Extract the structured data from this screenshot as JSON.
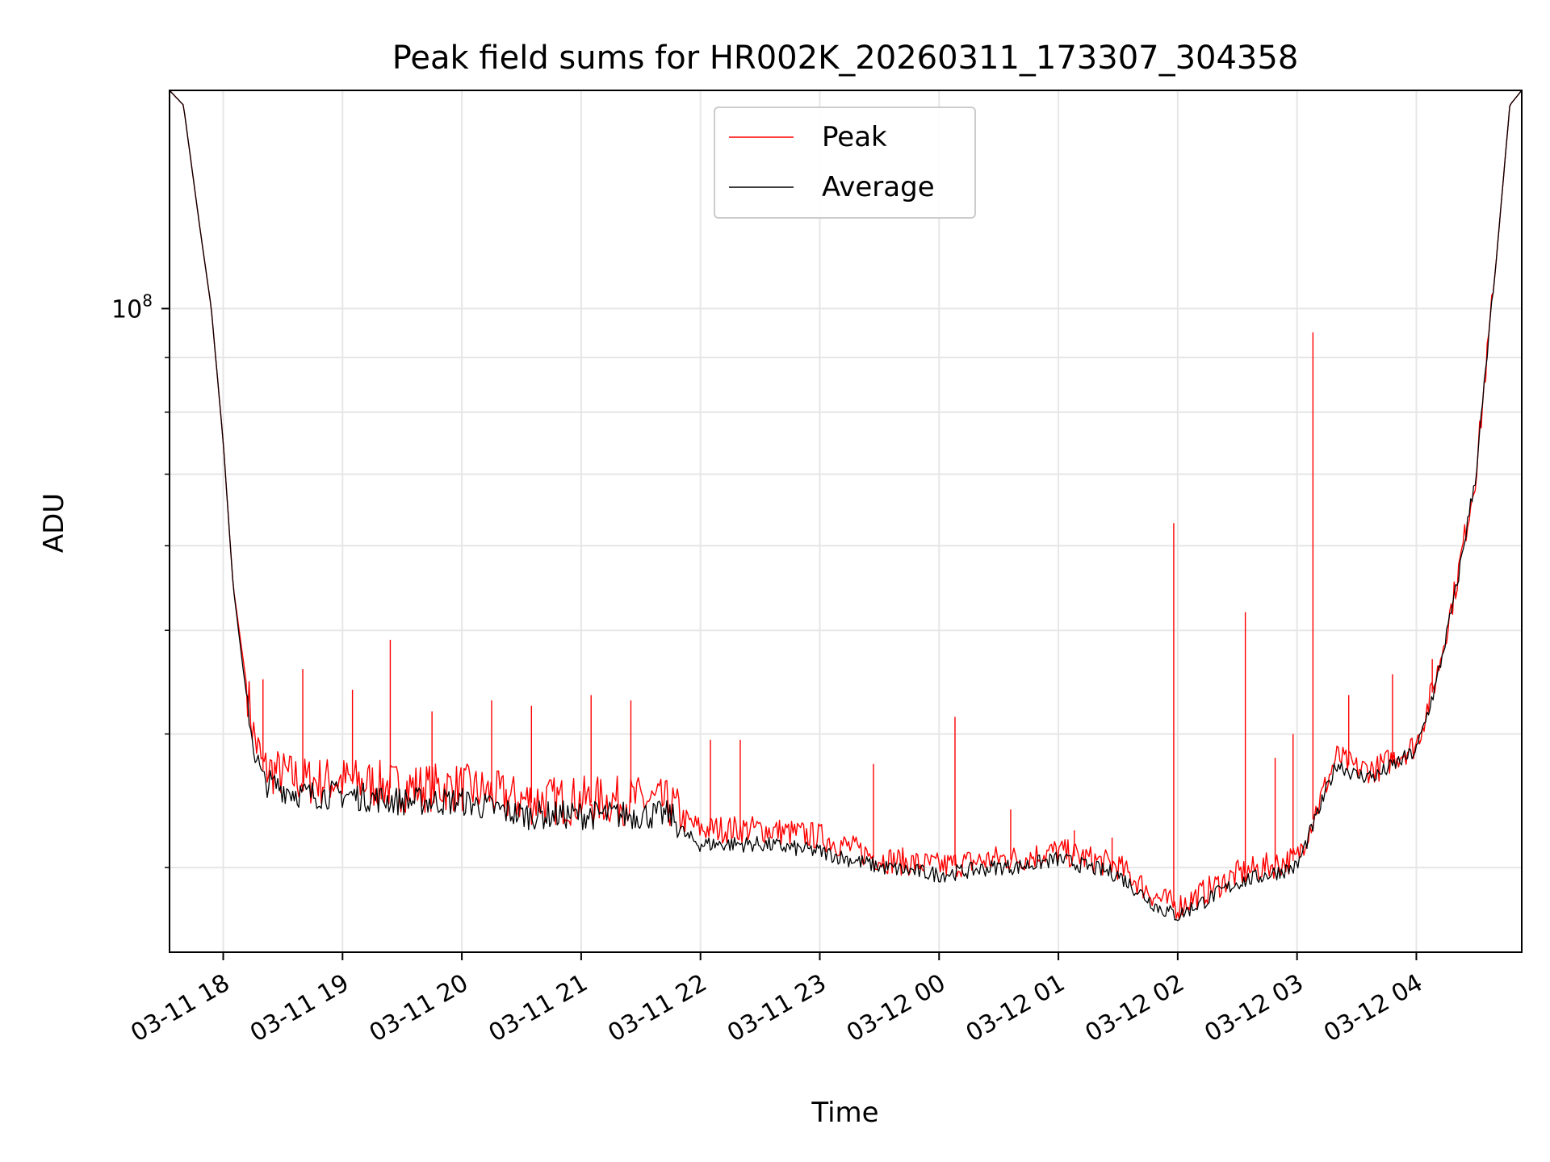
{
  "chart_data": {
    "type": "line",
    "title": "Peak field sums for HR002K_20260311_173307_304358",
    "xlabel": "Time",
    "ylabel": "ADU",
    "yscale": "log",
    "grid": true,
    "legend_position": "top-center",
    "x_ticks": [
      "03-11 18",
      "03-11 19",
      "03-11 20",
      "03-11 21",
      "03-11 22",
      "03-11 23",
      "03-12 00",
      "03-12 01",
      "03-12 02",
      "03-12 03",
      "03-12 04"
    ],
    "x_tick_times": [
      "2026-03-11T18:00",
      "2026-03-11T19:00",
      "2026-03-11T20:00",
      "2026-03-11T21:00",
      "2026-03-11T22:00",
      "2026-03-11T23:00",
      "2026-03-12T00:00",
      "2026-03-12T01:00",
      "2026-03-12T02:00",
      "2026-03-12T03:00",
      "2026-03-12T04:00"
    ],
    "xlim": [
      "2026-03-11T17:33",
      "2026-03-12T04:53"
    ],
    "y_tick_labels": [
      {
        "base": "10",
        "exp": "8",
        "value": 100000000
      }
    ],
    "ylim": [
      25000000,
      160000000
    ],
    "series": [
      {
        "name": "Peak",
        "color": "#ff0000",
        "x": [
          "2026-03-11T17:33",
          "2026-03-11T17:40",
          "2026-03-11T17:48",
          "2026-03-11T17:54",
          "2026-03-11T18:00",
          "2026-03-11T18:05",
          "2026-03-11T18:10",
          "2026-03-11T18:15",
          "2026-03-11T18:20",
          "2026-03-11T18:30",
          "2026-03-11T18:40",
          "2026-03-11T19:00",
          "2026-03-11T19:30",
          "2026-03-11T20:00",
          "2026-03-11T20:30",
          "2026-03-11T21:00",
          "2026-03-11T21:30",
          "2026-03-11T21:45",
          "2026-03-11T21:53",
          "2026-03-11T22:00",
          "2026-03-11T22:30",
          "2026-03-11T23:00",
          "2026-03-11T23:30",
          "2026-03-12T00:00",
          "2026-03-12T00:30",
          "2026-03-12T00:40",
          "2026-03-12T01:00",
          "2026-03-12T01:30",
          "2026-03-12T01:50",
          "2026-03-12T02:00",
          "2026-03-12T02:30",
          "2026-03-12T03:00",
          "2026-03-12T03:10",
          "2026-03-12T03:20",
          "2026-03-12T03:30",
          "2026-03-12T03:40",
          "2026-03-12T03:50",
          "2026-03-12T04:00",
          "2026-03-12T04:10",
          "2026-03-12T04:20",
          "2026-03-12T04:30",
          "2026-03-12T04:40",
          "2026-03-12T04:47",
          "2026-03-12T04:53"
        ],
        "y": [
          160000000,
          155000000,
          120000000,
          100000000,
          75000000,
          55000000,
          47000000,
          40000000,
          37000000,
          36500000,
          36000000,
          36000000,
          35500000,
          35500000,
          34500000,
          34500000,
          34500000,
          34200000,
          33000000,
          32500000,
          32500000,
          32000000,
          30500000,
          30000000,
          30500000,
          30500000,
          31000000,
          30000000,
          28000000,
          27500000,
          29500000,
          30500000,
          34000000,
          38000000,
          37000000,
          37000000,
          38000000,
          39000000,
          45000000,
          55000000,
          70000000,
          110000000,
          155000000,
          160000000
        ],
        "spikes": [
          {
            "x": "2026-03-11T18:20",
            "y": 45000000
          },
          {
            "x": "2026-03-11T18:40",
            "y": 46000000
          },
          {
            "x": "2026-03-11T19:05",
            "y": 44000000
          },
          {
            "x": "2026-03-11T19:24",
            "y": 49000000
          },
          {
            "x": "2026-03-11T19:45",
            "y": 42000000
          },
          {
            "x": "2026-03-11T20:15",
            "y": 43000000
          },
          {
            "x": "2026-03-11T20:35",
            "y": 42500000
          },
          {
            "x": "2026-03-11T21:05",
            "y": 43500000
          },
          {
            "x": "2026-03-11T21:25",
            "y": 43000000
          },
          {
            "x": "2026-03-11T22:05",
            "y": 39500000
          },
          {
            "x": "2026-03-11T22:20",
            "y": 39500000
          },
          {
            "x": "2026-03-11T23:27",
            "y": 37500000
          },
          {
            "x": "2026-03-12T00:08",
            "y": 41500000
          },
          {
            "x": "2026-03-12T00:36",
            "y": 34000000
          },
          {
            "x": "2026-03-12T01:08",
            "y": 32500000
          },
          {
            "x": "2026-03-12T01:27",
            "y": 32000000
          },
          {
            "x": "2026-03-12T01:58",
            "y": 63000000
          },
          {
            "x": "2026-03-12T02:34",
            "y": 52000000
          },
          {
            "x": "2026-03-12T02:49",
            "y": 38000000
          },
          {
            "x": "2026-03-12T02:58",
            "y": 40000000
          },
          {
            "x": "2026-03-12T03:08",
            "y": 95000000
          },
          {
            "x": "2026-03-12T03:26",
            "y": 43500000
          },
          {
            "x": "2026-03-12T03:48",
            "y": 45500000
          },
          {
            "x": "2026-03-12T04:08",
            "y": 47000000
          }
        ]
      },
      {
        "name": "Average",
        "color": "#000000",
        "x": [
          "2026-03-11T17:33",
          "2026-03-11T17:40",
          "2026-03-11T17:48",
          "2026-03-11T17:54",
          "2026-03-11T18:00",
          "2026-03-11T18:05",
          "2026-03-11T18:10",
          "2026-03-11T18:15",
          "2026-03-11T18:20",
          "2026-03-11T18:30",
          "2026-03-11T18:40",
          "2026-03-11T19:00",
          "2026-03-11T19:30",
          "2026-03-11T20:00",
          "2026-03-11T20:30",
          "2026-03-11T21:00",
          "2026-03-11T21:30",
          "2026-03-11T21:45",
          "2026-03-11T21:53",
          "2026-03-11T22:00",
          "2026-03-11T22:30",
          "2026-03-11T23:00",
          "2026-03-11T23:30",
          "2026-03-12T00:00",
          "2026-03-12T00:30",
          "2026-03-12T00:40",
          "2026-03-12T01:00",
          "2026-03-12T01:30",
          "2026-03-12T01:50",
          "2026-03-12T02:00",
          "2026-03-12T02:30",
          "2026-03-12T03:00",
          "2026-03-12T03:10",
          "2026-03-12T03:20",
          "2026-03-12T03:30",
          "2026-03-12T03:40",
          "2026-03-12T03:50",
          "2026-03-12T04:00",
          "2026-03-12T04:10",
          "2026-03-12T04:20",
          "2026-03-12T04:30",
          "2026-03-12T04:40",
          "2026-03-12T04:47",
          "2026-03-12T04:53"
        ],
        "y": [
          160000000,
          155000000,
          120000000,
          100000000,
          75000000,
          55000000,
          46000000,
          39000000,
          36000000,
          35500000,
          35000000,
          35000000,
          34500000,
          34500000,
          33500000,
          33500000,
          33500000,
          33500000,
          32000000,
          31500000,
          31500000,
          31000000,
          30000000,
          29500000,
          30000000,
          30000000,
          30500000,
          29500000,
          27500000,
          27000000,
          29000000,
          30000000,
          33500000,
          37500000,
          36500000,
          36500000,
          37500000,
          38500000,
          44500000,
          54500000,
          70000000,
          110000000,
          155000000,
          160000000
        ]
      }
    ]
  }
}
